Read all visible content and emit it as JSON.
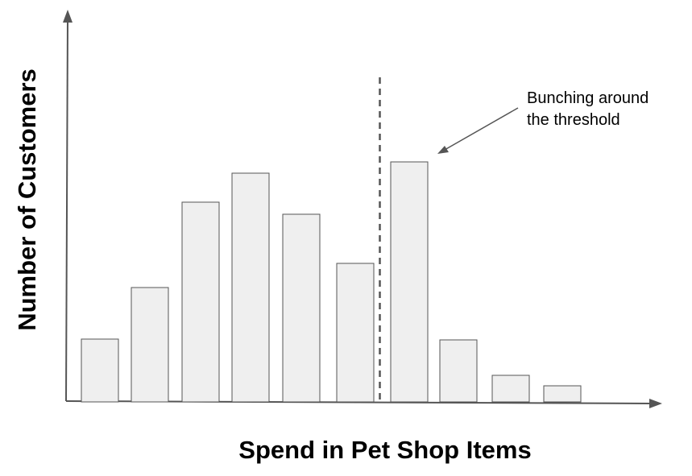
{
  "chart_data": {
    "type": "bar",
    "xlabel": "Spend in Pet Shop Items",
    "ylabel": "Number of Customers",
    "values": [
      78,
      142,
      248,
      284,
      233,
      172,
      298,
      77,
      33,
      20
    ],
    "ylim": [
      0,
      300
    ],
    "grid": false,
    "threshold_after_bar": 6,
    "annotation": {
      "lines": [
        "Bunching around",
        "the threshold"
      ],
      "target_bar": 7
    },
    "colors": {
      "bar_fill": "#efefef",
      "bar_stroke": "#555555",
      "axis": "#555555"
    }
  }
}
